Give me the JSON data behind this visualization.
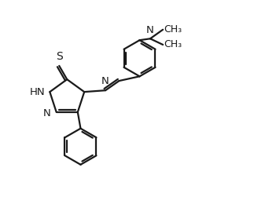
{
  "bg_color": "#ffffff",
  "line_color": "#1a1a1a",
  "line_width": 1.6,
  "font_size": 9.5,
  "fig_width": 3.28,
  "fig_height": 2.6,
  "dpi": 100,
  "xlim": [
    0.0,
    8.5
  ],
  "ylim": [
    0.5,
    7.0
  ]
}
